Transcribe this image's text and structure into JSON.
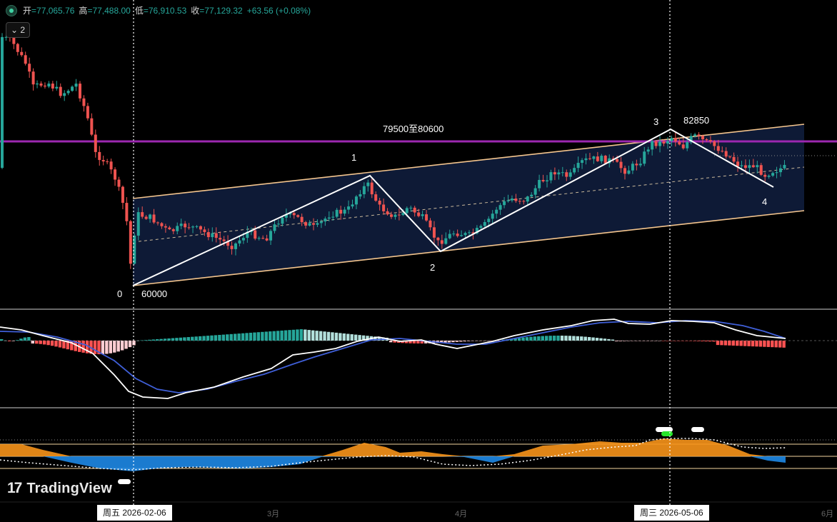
{
  "ohlc": {
    "open_label": "开",
    "open": "77,065.76",
    "high_label": "高",
    "high": "77,488.00",
    "low_label": "低",
    "low": "76,910.53",
    "close_label": "收",
    "close": "77,129.32",
    "change": "+63.56 (+0.08%)"
  },
  "indicator_badge": "2",
  "brand": "TradingView",
  "x_axis": {
    "cursor_dates": [
      "周五 2026-02-06",
      "周三 2026-05-06"
    ],
    "months": [
      "3月",
      "4月",
      "6月"
    ]
  },
  "colors": {
    "up": "#26a69a",
    "down": "#ef5350",
    "channel_fill": "#0e1a36",
    "channel_border": "#f4c58e",
    "resistance": "#9c27b0",
    "wave_line": "#ffffff",
    "macd_fast": "#ffffff",
    "macd_slow": "#3f5fd8",
    "osc_bull": "#f7931a",
    "osc_bear": "#1e88e5"
  },
  "chart_data": {
    "type": "candlestick",
    "annotations": {
      "resistance_zone_label": "79500至80600",
      "low_label": "60000",
      "high_label": "82850",
      "wave_labels": [
        "0",
        "1",
        "2",
        "3",
        "4"
      ]
    },
    "wave_points": [
      {
        "label": "0",
        "date": "2026-02-06",
        "price": 60000
      },
      {
        "label": "1",
        "date": "2026-03-07",
        "price": 74000
      },
      {
        "label": "2",
        "date": "2026-03-24",
        "price": 65000
      },
      {
        "label": "3",
        "date": "2026-05-06",
        "price": 82850
      },
      {
        "label": "4",
        "date": "2026-05-22",
        "price": 73500
      }
    ]
  }
}
